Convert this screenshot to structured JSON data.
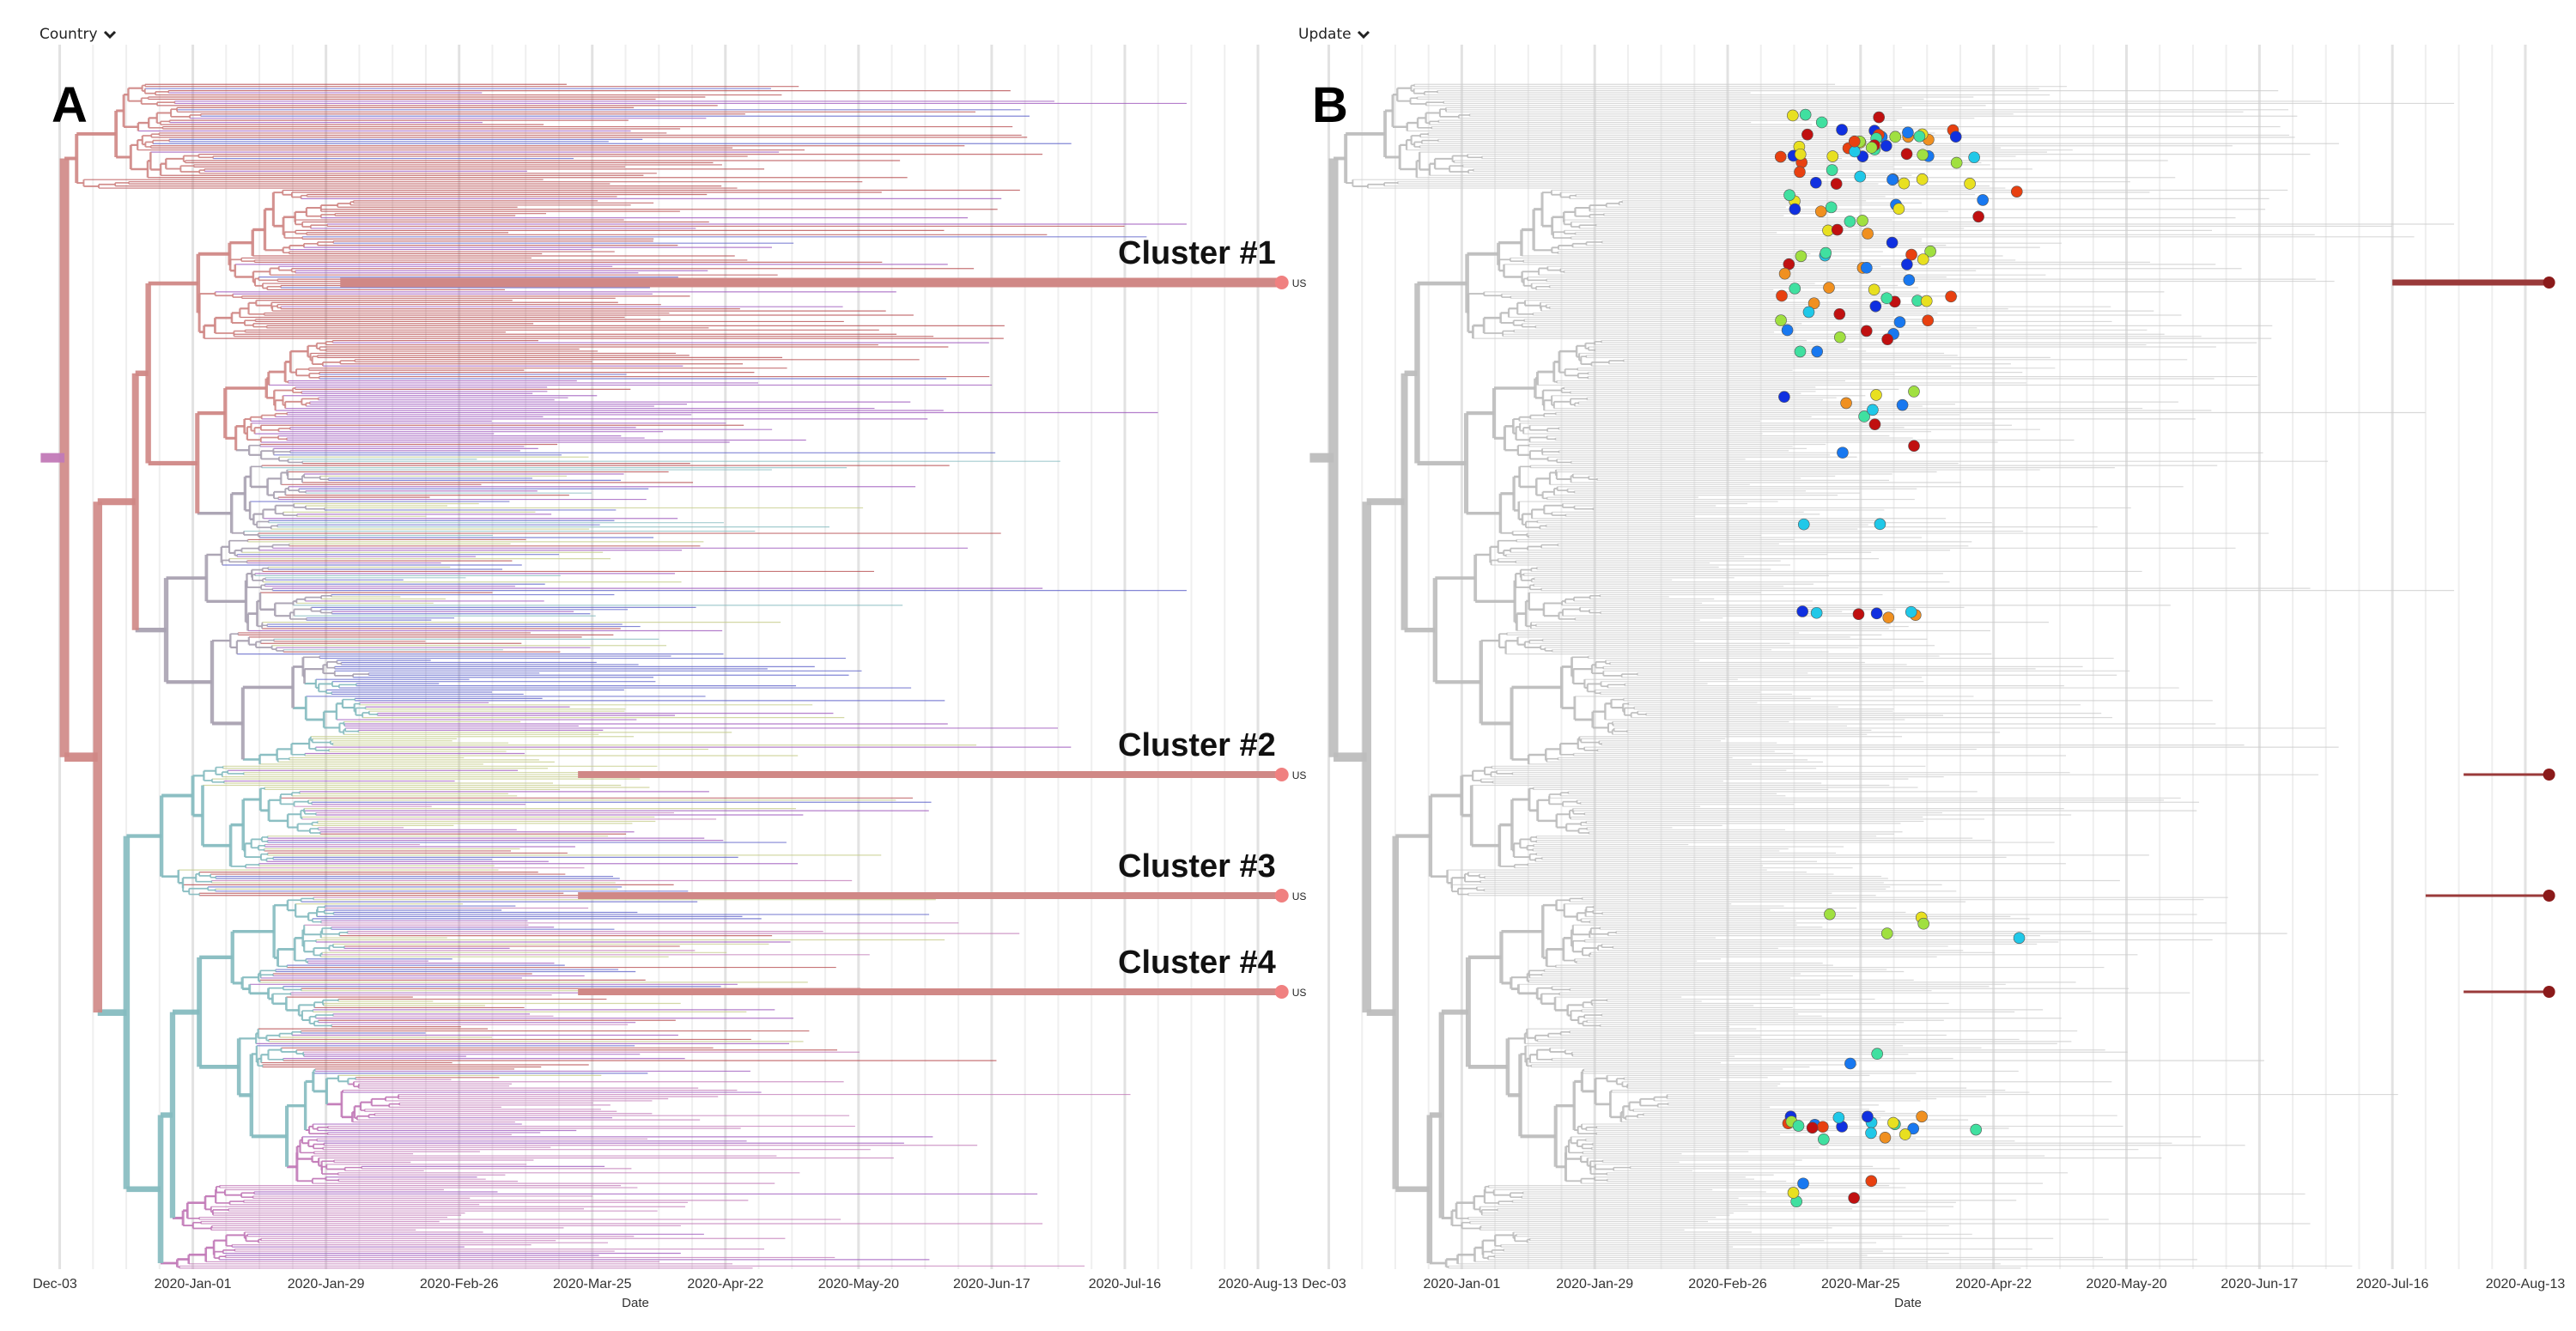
{
  "panels": [
    {
      "id": "A",
      "selector_label": "Country",
      "panel_letter": "A",
      "tip_label": "US"
    },
    {
      "id": "B",
      "selector_label": "Update",
      "panel_letter": "B",
      "tip_label": ""
    }
  ],
  "colors": {
    "red": "#b5474a",
    "red_backbone": "#d08886",
    "purple": "#9b55bb",
    "blue": "#5a5ec8",
    "teal": "#86bcc0",
    "olive": "#c5cc88",
    "magenta": "#c27ab8",
    "grey_backbone": "#a9a2b2",
    "panel_b_branch": "#bdbdbd",
    "cluster_tip_a": "#f08080",
    "cluster_tip_b": "#8b1a1a"
  },
  "chart_data": {
    "type": "tree",
    "xlabel": "Date",
    "x_ticks": [
      "Dec-03",
      "2020-Jan-01",
      "2020-Jan-29",
      "2020-Feb-26",
      "2020-Mar-25",
      "2020-Apr-22",
      "2020-May-20",
      "2020-Jun-17",
      "2020-Jul-16",
      "2020-Aug-13"
    ],
    "color_by": [
      "Country",
      "Update"
    ],
    "annotations": [
      "Cluster #1",
      "Cluster #2",
      "Cluster #3",
      "Cluster #4"
    ]
  }
}
